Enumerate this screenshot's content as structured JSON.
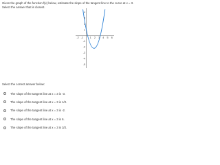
{
  "question": "Given the graph of the function f(x) below, estimate the slope of the tangent line to the curve at x = 3. Select the answer that is closest.",
  "graph": {
    "x_ticks": [
      -2,
      -1,
      1,
      2,
      3,
      4,
      5,
      6
    ],
    "y_ticks": [
      4,
      3,
      2,
      1,
      -1,
      -2,
      -3,
      -4,
      -5
    ]
  },
  "prompt": "Select the correct answer below:",
  "options": [
    "The slope of the tangent line at x = 3 is -3.",
    "The slope of the tangent line at x = 3 is 1/2.",
    "The slope of the tangent line at x = 3 is -2.",
    "The slope of the tangent line at x = 3 is 6.",
    "The slope of the tangent line at x = 3 is 3/2."
  ]
}
